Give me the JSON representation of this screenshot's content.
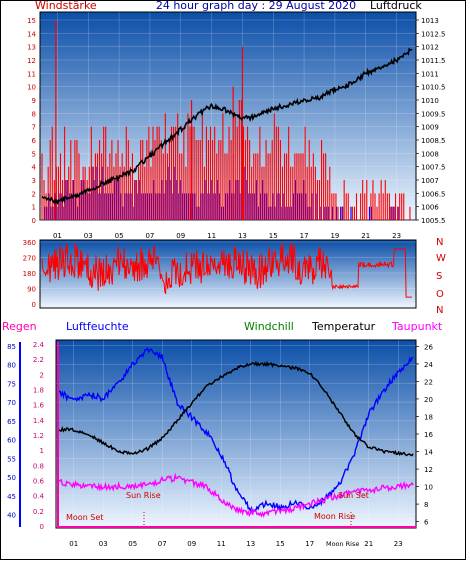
{
  "header": {
    "left_label": "Windstärke",
    "title": "24 hour graph day : 29 August 2020",
    "right_label": "Luftdruck"
  },
  "colors": {
    "sky_top": "#0b4fa8",
    "sky_bottom": "#eef6ff",
    "wind": "#ff0000",
    "gust": "#0000ff",
    "pressure": "#000000",
    "humidity": "#0000ff",
    "temperature": "#000000",
    "dewpoint": "#ff00ff",
    "rain_axis": "#ff00aa",
    "humidity_axis": "#0000ff",
    "windchill": "#008000",
    "label_title": "#0000aa",
    "axis_red": "#cc0000",
    "sun_moon": "#cc0000"
  },
  "panel1": {
    "left_ticks": [
      "0",
      "1",
      "2",
      "3",
      "4",
      "5",
      "6",
      "7",
      "8",
      "9",
      "10",
      "11",
      "12",
      "13",
      "14",
      "15"
    ],
    "right_ticks": [
      "1005.5",
      "1006",
      "1006.5",
      "1007",
      "1007.5",
      "1008",
      "1008.5",
      "1009",
      "1009.5",
      "1010",
      "1010.5",
      "1011",
      "1011.5",
      "1012",
      "1012.5",
      "1013"
    ],
    "x_ticks": [
      "01",
      "03",
      "05",
      "07",
      "09",
      "11",
      "13",
      "15",
      "17",
      "19",
      "21",
      "23"
    ]
  },
  "panel2": {
    "left_ticks": [
      "0",
      "90",
      "180",
      "270",
      "360"
    ],
    "right_letters": [
      "N",
      "W",
      "S",
      "O",
      "N"
    ]
  },
  "panel3": {
    "labels": {
      "rain": "Regen",
      "humidity": "Luftfeuchte",
      "windchill": "Windchill",
      "temperature": "Temperatur",
      "dewpoint": "Taupunkt"
    },
    "rain_ticks": [
      "0",
      "0.2",
      "0.4",
      "0.6",
      "0.8",
      "1",
      "1.2",
      "1.4",
      "1.6",
      "1.8",
      "2",
      "2.2",
      "2.4"
    ],
    "humidity_ticks": [
      "40",
      "45",
      "50",
      "55",
      "60",
      "65",
      "70",
      "75",
      "80",
      "85"
    ],
    "temp_ticks": [
      "6",
      "8",
      "10",
      "12",
      "14",
      "16",
      "18",
      "20",
      "22",
      "24",
      "26"
    ],
    "x_ticks": [
      "01",
      "03",
      "05",
      "07",
      "09",
      "11",
      "13",
      "15",
      "17",
      "Moon",
      "Rise",
      "21",
      "23"
    ],
    "annotations": {
      "moon_set": "Moon Set",
      "sun_rise": "Sun Rise",
      "sun_set": "Sun Set",
      "moon_rise": "Moon Rise"
    }
  },
  "chart_data": [
    {
      "type": "line",
      "title": "24 hour graph day : 29 August 2020",
      "xlabel": "",
      "ylabel": "Windstärke",
      "ylabel_right": "Luftdruck",
      "ylim": [
        0,
        15
      ],
      "ylim_right": [
        1005.5,
        1013
      ],
      "x": [
        "00",
        "01",
        "02",
        "03",
        "04",
        "05",
        "06",
        "07",
        "08",
        "09",
        "10",
        "11",
        "12",
        "13",
        "14",
        "15",
        "16",
        "17",
        "18",
        "19",
        "20",
        "21",
        "22",
        "23",
        "24"
      ],
      "series": [
        {
          "name": "Luftdruck",
          "axis": "right",
          "values": [
            1006.3,
            1006.2,
            1006.4,
            1006.6,
            1006.9,
            1007.1,
            1007.4,
            1007.9,
            1008.4,
            1008.9,
            1009.4,
            1009.8,
            1009.6,
            1009.3,
            1009.4,
            1009.7,
            1009.8,
            1010.0,
            1010.1,
            1010.4,
            1010.6,
            1011.0,
            1011.2,
            1011.5,
            1011.9
          ]
        },
        {
          "axis": "left",
          "values": [
            3,
            5,
            4,
            4,
            6,
            5,
            4,
            5,
            7,
            6,
            5,
            6,
            6,
            7,
            5,
            6,
            5,
            5,
            4,
            2,
            1,
            1,
            1,
            0,
            0
          ]
        },
        {
          "axis": "left",
          "values": [
            1,
            2,
            2,
            3,
            3,
            2,
            2,
            2,
            3,
            3,
            2,
            2,
            2,
            3,
            2,
            2,
            2,
            2,
            1,
            0,
            0,
            0,
            0,
            0,
            0
          ]
        }
      ]
    },
    {
      "type": "line",
      "xlabel": "",
      "ylabel": "",
      "ylim": [
        0,
        360
      ],
      "x": [
        "00",
        "01",
        "02",
        "03",
        "04",
        "05",
        "06",
        "07",
        "08",
        "09",
        "10",
        "11",
        "12",
        "13",
        "14",
        "15",
        "16",
        "17",
        "18",
        "19",
        "20",
        "21",
        "22",
        "23",
        "24"
      ],
      "series": [
        {
          "values": [
            180,
            230,
            260,
            200,
            170,
            240,
            210,
            260,
            160,
            200,
            230,
            190,
            250,
            220,
            180,
            240,
            260,
            200,
            230,
            170,
            90,
            80,
            220,
            300,
            30
          ]
        }
      ]
    },
    {
      "type": "line",
      "xlabel": "",
      "ylabel": "Regen",
      "x": [
        "00",
        "01",
        "02",
        "03",
        "04",
        "05",
        "06",
        "07",
        "08",
        "09",
        "10",
        "11",
        "12",
        "13",
        "14",
        "15",
        "16",
        "17",
        "18",
        "19",
        "20",
        "21",
        "22",
        "23",
        "24"
      ],
      "series": [
        {
          "name": "Luftfeuchte",
          "axis": "humidity",
          "ylim": [
            37,
            86
          ],
          "values": [
            73,
            70,
            72,
            71,
            75,
            80,
            84,
            82,
            70,
            66,
            62,
            56,
            47,
            41,
            43,
            42,
            43,
            42,
            44,
            48,
            56,
            67,
            73,
            78,
            82
          ]
        },
        {
          "name": "Temperatur",
          "axis": "temp",
          "ylim": [
            5.5,
            26.5
          ],
          "values": [
            16.5,
            16.5,
            16.0,
            15.0,
            14.0,
            13.8,
            14.3,
            15.5,
            17.5,
            19.5,
            21.5,
            22.5,
            23.5,
            24.0,
            24.0,
            23.8,
            23.5,
            23.0,
            21.0,
            18.5,
            16.0,
            14.5,
            14.0,
            13.8,
            13.6
          ]
        },
        {
          "name": "Taupunkt",
          "axis": "temp",
          "ylim": [
            5.5,
            26.5
          ],
          "values": [
            10.5,
            10.3,
            10.0,
            10.0,
            10.0,
            10.0,
            10.3,
            10.7,
            11.0,
            10.5,
            10.0,
            8.5,
            7.5,
            7.0,
            7.0,
            7.3,
            7.5,
            8.0,
            8.5,
            9.0,
            9.3,
            9.6,
            9.8,
            10.0,
            10.3
          ]
        },
        {
          "name": "Regen",
          "axis": "rain",
          "ylim": [
            0,
            2.4
          ],
          "values": [
            0,
            0,
            0,
            0,
            0,
            0,
            0,
            0,
            0,
            0,
            0,
            0,
            0,
            0,
            0,
            0,
            0,
            0,
            0,
            0,
            0,
            0,
            0,
            0,
            0
          ]
        }
      ]
    }
  ]
}
